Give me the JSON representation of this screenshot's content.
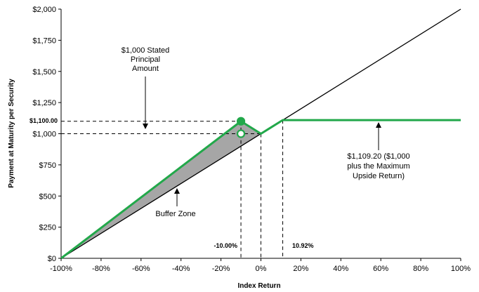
{
  "chart_data": {
    "type": "line",
    "xlabel": "Index Return",
    "ylabel": "Payment at Maturity per Security",
    "xlim": [
      -100,
      100
    ],
    "ylim": [
      0,
      2000
    ],
    "x_ticks": [
      -100,
      -80,
      -60,
      -40,
      -20,
      0,
      20,
      40,
      60,
      80,
      100
    ],
    "x_tick_labels": [
      "-100%",
      "-80%",
      "-60%",
      "-40%",
      "-20%",
      "0%",
      "20%",
      "40%",
      "60%",
      "80%",
      "100%"
    ],
    "y_ticks": [
      0,
      250,
      500,
      750,
      1000,
      1250,
      1500,
      1750,
      2000
    ],
    "y_tick_labels": [
      "$0",
      "$250",
      "$500",
      "$750",
      "$1,000",
      "$1,250",
      "$1,500",
      "$1,750",
      "$2,000"
    ],
    "grid": false,
    "series": [
      {
        "x": [
          -100,
          100
        ],
        "y": [
          0,
          2000
        ],
        "color": "#000000"
      },
      {
        "x": [
          -100,
          -10,
          0,
          10.92,
          100
        ],
        "y": [
          0,
          1100,
          1000,
          1109.2,
          1109.2
        ],
        "color": "#22a84a"
      }
    ],
    "buffer_zone_polygon": {
      "x": [
        -100,
        -10,
        0
      ],
      "y": [
        0,
        1100,
        1000
      ],
      "color": "#a6a6a6"
    },
    "markers": [
      {
        "x": -10,
        "y": 1100,
        "style": "filled",
        "color": "#22a84a"
      },
      {
        "x": -10,
        "y": 1000,
        "style": "hollow",
        "color": "#22a84a"
      }
    ],
    "reference_lines": {
      "vertical_x": [
        -10,
        0,
        10.92
      ],
      "horizontal_y": [
        1100,
        1000
      ]
    },
    "extra_labels": {
      "y_1100": "$1,100.00",
      "x_minus10": "-10.00%",
      "x_1092": "10.92%"
    },
    "annotations": {
      "principal": [
        "$1,000 Stated",
        "Principal",
        "Amount"
      ],
      "buffer": "Buffer Zone",
      "max_return": [
        "$1,109.20 ($1,000",
        "plus the Maximum",
        "Upside Return)"
      ]
    }
  }
}
